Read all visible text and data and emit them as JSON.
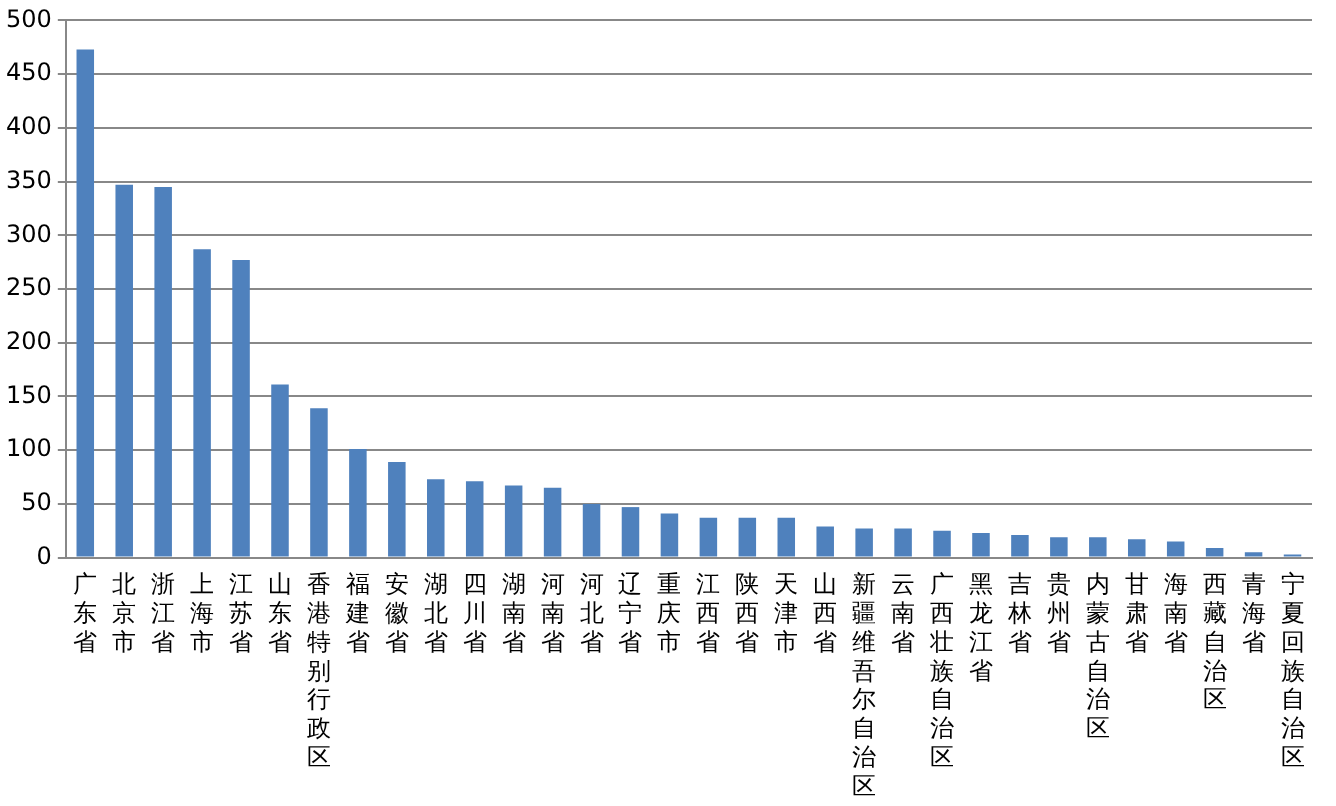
{
  "chart_data": {
    "type": "bar",
    "categories": [
      "广东省",
      "北京市",
      "浙江省",
      "上海市",
      "江苏省",
      "山东省",
      "香港特别行政区",
      "福建省",
      "安徽省",
      "湖北省",
      "四川省",
      "湖南省",
      "河南省",
      "河北省",
      "辽宁省",
      "重庆市",
      "江西省",
      "陕西省",
      "天津市",
      "山西省",
      "新疆维吾尔自治区",
      "云南省",
      "广西壮族自治区",
      "黑龙江省",
      "吉林省",
      "贵州省",
      "内蒙古自治区",
      "甘肃省",
      "海南省",
      "西藏自治区",
      "青海省",
      "宁夏回族自治区"
    ],
    "values": [
      473,
      347,
      345,
      287,
      277,
      161,
      139,
      101,
      89,
      73,
      71,
      67,
      65,
      50,
      47,
      41,
      37,
      37,
      37,
      29,
      27,
      27,
      25,
      23,
      21,
      19,
      19,
      17,
      15,
      9,
      5,
      3
    ],
    "color": "#4f81bd",
    "ylim": [
      0,
      500
    ],
    "yticks": [
      0,
      50,
      100,
      150,
      200,
      250,
      300,
      350,
      400,
      450,
      500
    ],
    "grid": "y",
    "legend": false
  }
}
